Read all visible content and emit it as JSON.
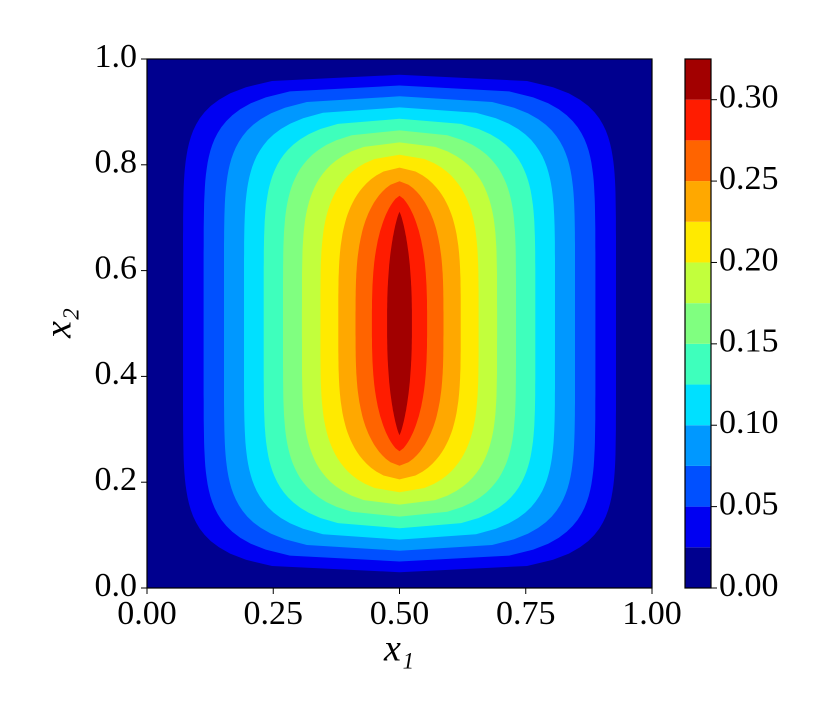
{
  "chart_data": {
    "type": "contour",
    "xlabel": "x₁",
    "ylabel": "x₂",
    "xlim": [
      0,
      1
    ],
    "ylim": [
      0,
      1
    ],
    "xticks": [
      {
        "value": 0,
        "label": "0.00"
      },
      {
        "value": 0.25,
        "label": "0.25"
      },
      {
        "value": 0.5,
        "label": "0.50"
      },
      {
        "value": 0.75,
        "label": "0.75"
      },
      {
        "value": 1,
        "label": "1.00"
      }
    ],
    "yticks": [
      {
        "value": 0,
        "label": "0.0"
      },
      {
        "value": 0.2,
        "label": "0.2"
      },
      {
        "value": 0.4,
        "label": "0.4"
      },
      {
        "value": 0.6,
        "label": "0.6"
      },
      {
        "value": 0.8,
        "label": "0.8"
      },
      {
        "value": 1,
        "label": "1.0"
      }
    ],
    "levels": [
      0,
      0.025,
      0.05,
      0.075,
      0.1,
      0.125,
      0.15,
      0.175,
      0.2,
      0.225,
      0.25,
      0.275,
      0.3,
      0.325
    ],
    "colors": [
      "#00008f",
      "#0000f2",
      "#0050ff",
      "#0098ff",
      "#00e0ff",
      "#3effbc",
      "#80ff80",
      "#c2ff3c",
      "#ffea00",
      "#ffa800",
      "#ff6400",
      "#ff1c00",
      "#a20000"
    ],
    "colorbar_lim": [
      0,
      0.325
    ],
    "colorbar_ticks": [
      {
        "value": 0,
        "label": "0.00"
      },
      {
        "value": 0.05,
        "label": "0.05"
      },
      {
        "value": 0.1,
        "label": "0.10"
      },
      {
        "value": 0.15,
        "label": "0.15"
      },
      {
        "value": 0.2,
        "label": "0.20"
      },
      {
        "value": 0.25,
        "label": "0.25"
      },
      {
        "value": 0.3,
        "label": "0.30"
      }
    ]
  }
}
